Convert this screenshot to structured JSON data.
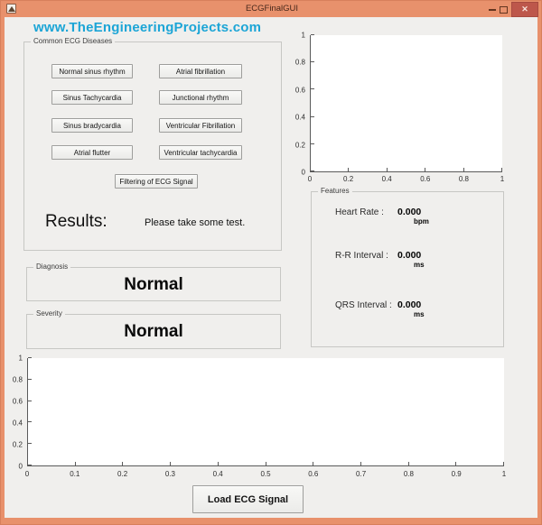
{
  "window": {
    "title": "ECGFinalGUI",
    "close_glyph": "x"
  },
  "header": {
    "website": "www.TheEngineeringProjects.com"
  },
  "diseases": {
    "panel_label": "Common ECG Diseases",
    "left": [
      "Normal sinus rhythm",
      "Sinus Tachycardia",
      "Sinus bradycardia",
      "Atrial flutter"
    ],
    "right": [
      "Atrial fibrillation",
      "Junctional rhythm",
      "Ventricular Fibrillation",
      "Ventricular tachycardia"
    ],
    "filter_button": "Filtering of ECG Signal"
  },
  "results": {
    "label": "Results:",
    "message": "Please take some test."
  },
  "diagnosis": {
    "panel_label": "Diagnosis",
    "value": "Normal"
  },
  "severity": {
    "panel_label": "Severity",
    "value": "Normal"
  },
  "features": {
    "panel_label": "Features",
    "rows": [
      {
        "label": "Heart Rate :",
        "value": "0.000",
        "unit": "bpm"
      },
      {
        "label": "R-R Interval :",
        "value": "0.000",
        "unit": "ms"
      },
      {
        "label": "QRS Interval :",
        "value": "0.000",
        "unit": "ms"
      }
    ]
  },
  "load_button": "Load ECG Signal",
  "chart_data": [
    {
      "type": "line",
      "title": "",
      "series": [],
      "x_ticks": [
        "0",
        "0.2",
        "0.4",
        "0.6",
        "0.8",
        "1"
      ],
      "y_ticks": [
        "0",
        "0.2",
        "0.4",
        "0.6",
        "0.8",
        "1"
      ],
      "xlim": [
        0,
        1
      ],
      "ylim": [
        0,
        1
      ],
      "note": "empty axes, no data plotted"
    },
    {
      "type": "line",
      "title": "",
      "series": [],
      "x_ticks": [
        "0",
        "0.1",
        "0.2",
        "0.3",
        "0.4",
        "0.5",
        "0.6",
        "0.7",
        "0.8",
        "0.9",
        "1"
      ],
      "y_ticks": [
        "0",
        "0.2",
        "0.4",
        "0.6",
        "0.8",
        "1"
      ],
      "xlim": [
        0,
        1
      ],
      "ylim": [
        0,
        1
      ],
      "note": "empty axes, no data plotted"
    }
  ],
  "colors": {
    "titlebar": "#E8916C",
    "close_button": "#BD574B",
    "link_text": "#1CA5D6",
    "client_bg": "#F0EFED",
    "plot_bg": "#FFFFFF",
    "axis": "#5A5A5A"
  }
}
